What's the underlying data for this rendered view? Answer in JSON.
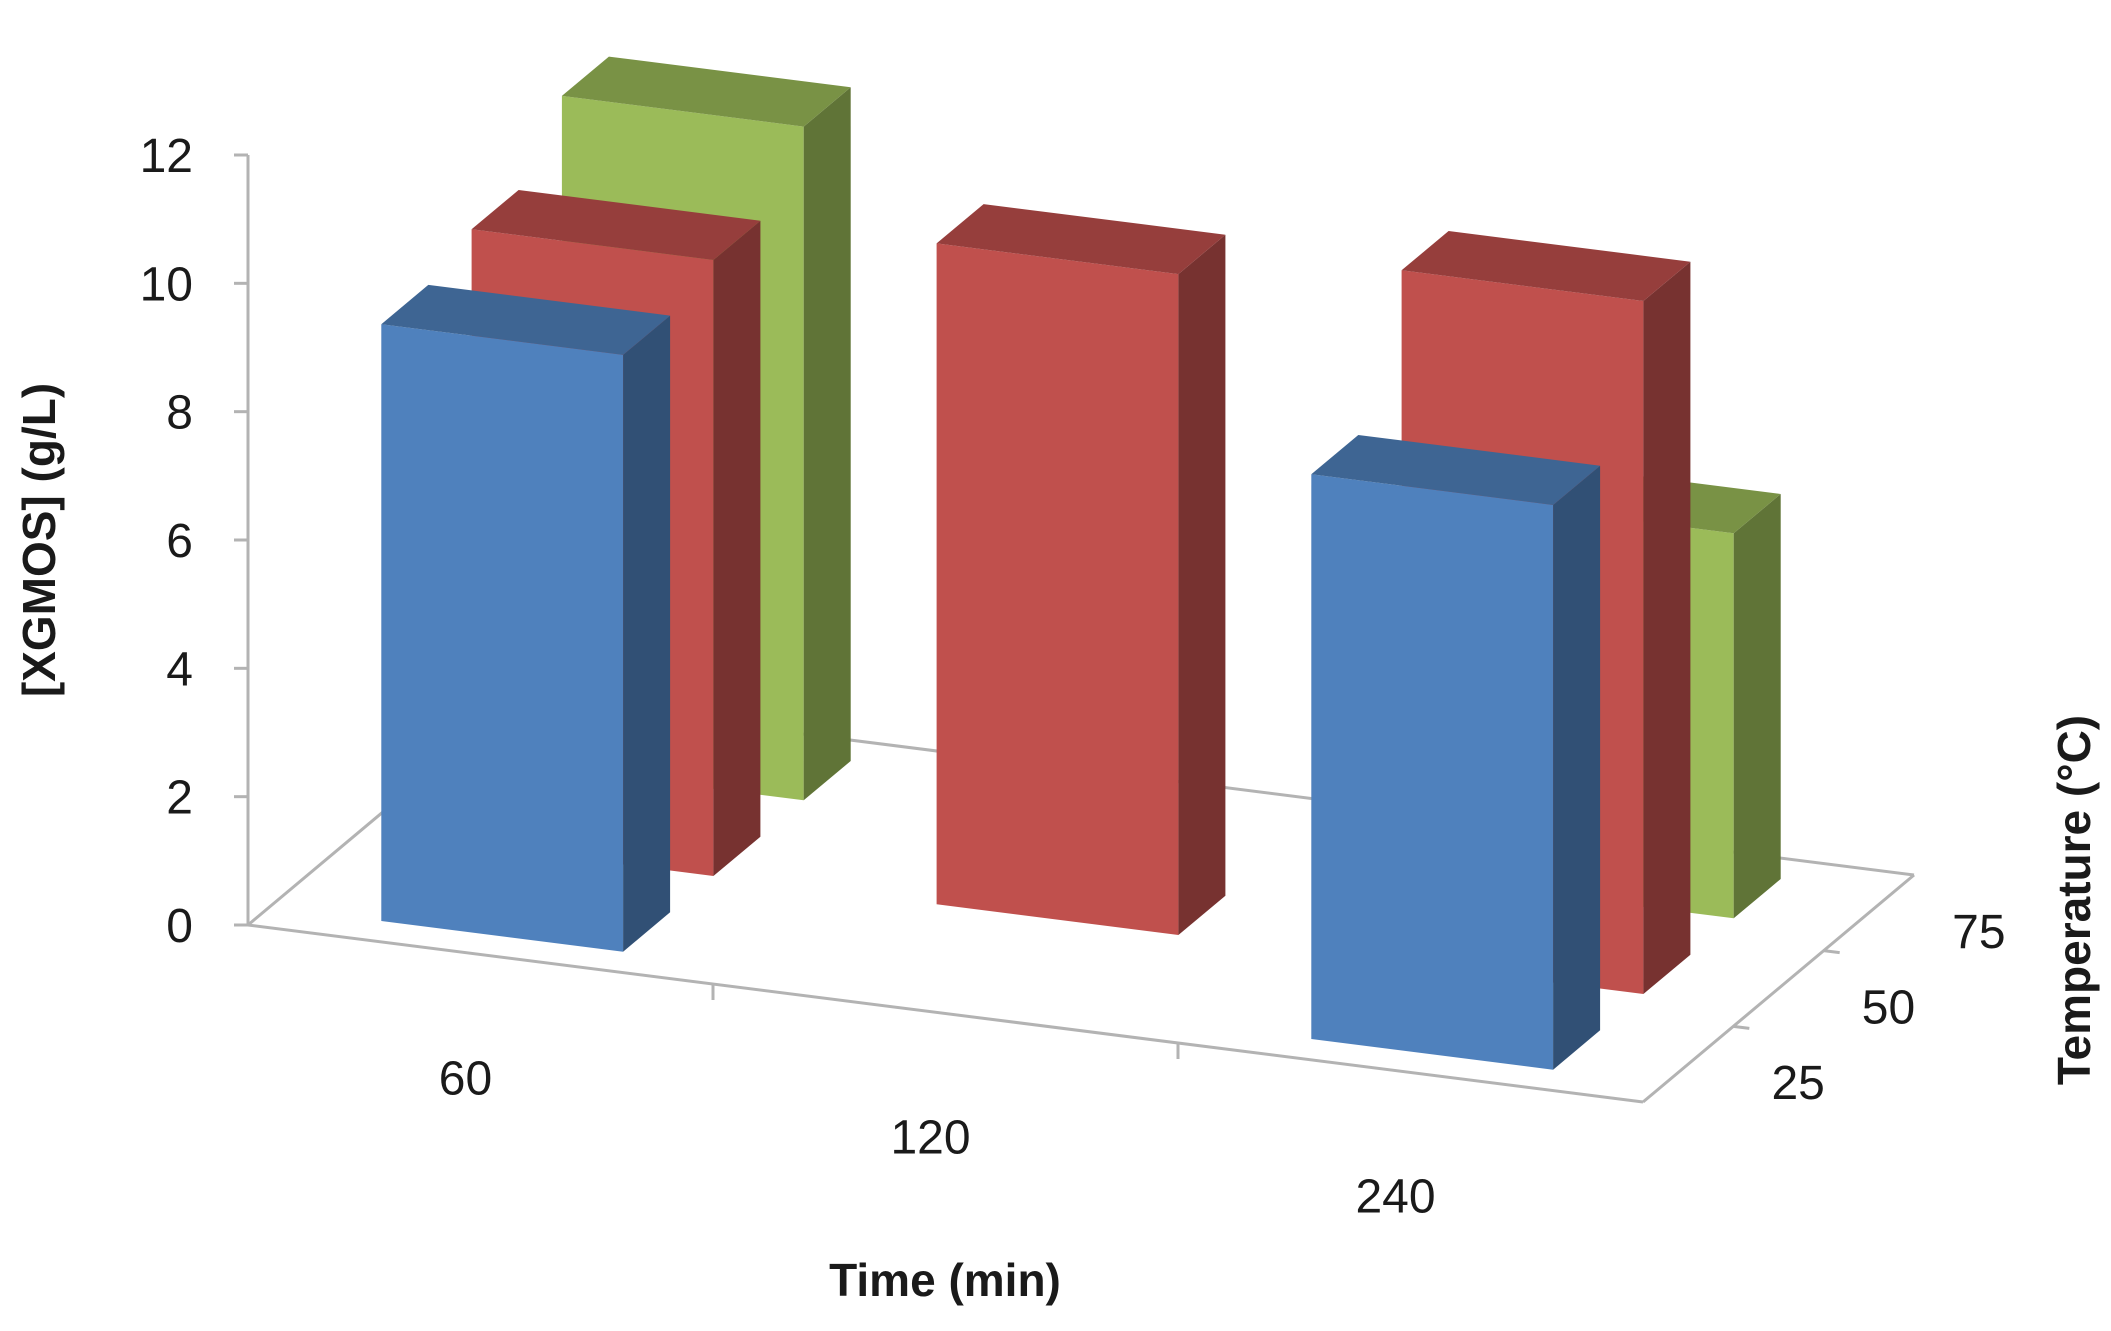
{
  "chart_data": {
    "type": "bar",
    "subtype": "3d-column",
    "title": "",
    "xlabel": "Time (min)",
    "ylabel": "[XGMOS] (g/L)",
    "zlabel": "Temperature (°C)",
    "categories": [
      "60",
      "120",
      "240"
    ],
    "z_categories": [
      "25",
      "50",
      "75"
    ],
    "ylim": [
      0,
      12
    ],
    "yticks": [
      "0",
      "2",
      "4",
      "6",
      "8",
      "10",
      "12"
    ],
    "grid": false,
    "legend": "none",
    "series": [
      {
        "temperature": "25",
        "color": "#4f81bd",
        "values": [
          9.3,
          null,
          8.8
        ]
      },
      {
        "temperature": "50",
        "color": "#c0504d",
        "values": [
          9.6,
          10.3,
          10.8
        ]
      },
      {
        "temperature": "75",
        "color": "#9bbb59",
        "values": [
          10.5,
          null,
          6.0
        ]
      }
    ]
  }
}
